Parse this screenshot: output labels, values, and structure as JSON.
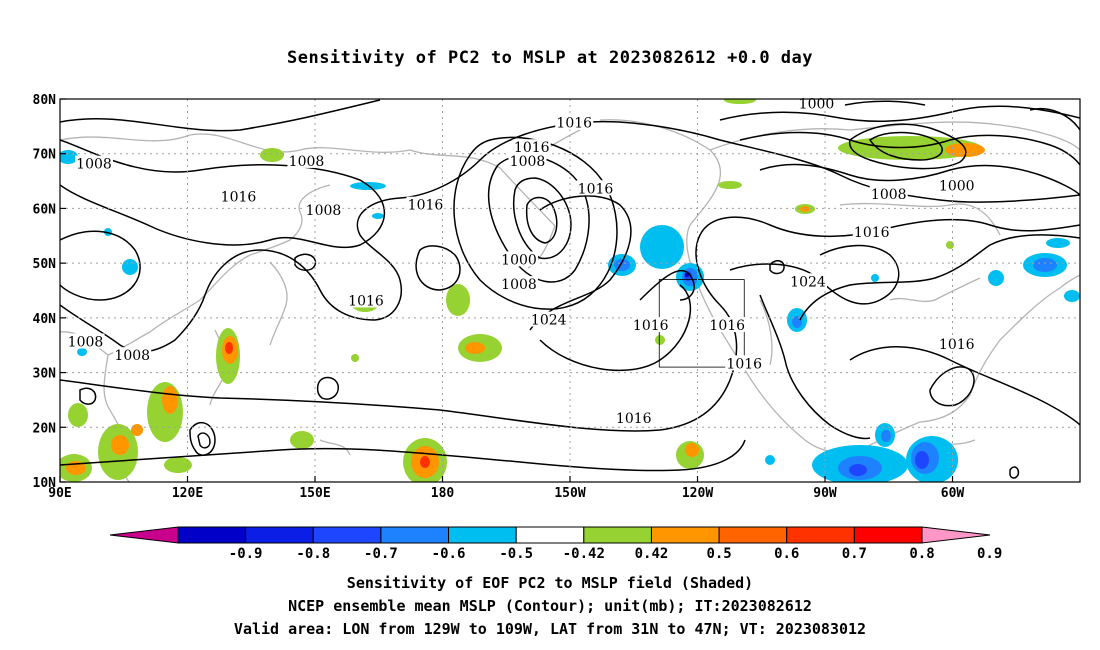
{
  "title": "Sensitivity of PC2 to MSLP at 2023082612 +0.0 day",
  "map": {
    "lon_range": [
      90,
      330
    ],
    "lat_range": [
      10,
      80
    ],
    "x_ticks": [
      "90E",
      "120E",
      "150E",
      "180",
      "150W",
      "120W",
      "90W",
      "60W"
    ],
    "x_tick_lons": [
      90,
      120,
      150,
      180,
      210,
      240,
      270,
      300
    ],
    "y_ticks": [
      "10N",
      "20N",
      "30N",
      "40N",
      "50N",
      "60N",
      "70N",
      "80N"
    ],
    "y_tick_lats": [
      10,
      20,
      30,
      40,
      50,
      60,
      70,
      80
    ],
    "gridlines": true,
    "valid_area": {
      "lon": [
        231,
        251
      ],
      "lat": [
        31,
        47
      ]
    },
    "contour_labels": [
      {
        "text": "1016",
        "lon": 211,
        "lat": 75.5
      },
      {
        "text": "1016",
        "lon": 201,
        "lat": 71
      },
      {
        "text": "1008",
        "lon": 200,
        "lat": 68.5
      },
      {
        "text": "1000",
        "lon": 268,
        "lat": 79
      },
      {
        "text": "1008",
        "lon": 98,
        "lat": 68
      },
      {
        "text": "1008",
        "lon": 148,
        "lat": 68.5
      },
      {
        "text": "1016",
        "lon": 132,
        "lat": 62
      },
      {
        "text": "1008",
        "lon": 152,
        "lat": 59.5
      },
      {
        "text": "1016",
        "lon": 176,
        "lat": 60.5
      },
      {
        "text": "1016",
        "lon": 216,
        "lat": 63.5
      },
      {
        "text": "1008",
        "lon": 285,
        "lat": 62.5
      },
      {
        "text": "1000",
        "lon": 301,
        "lat": 64
      },
      {
        "text": "1016",
        "lon": 281,
        "lat": 55.5
      },
      {
        "text": "1000",
        "lon": 198,
        "lat": 50.5
      },
      {
        "text": "1008",
        "lon": 198,
        "lat": 46
      },
      {
        "text": "1016",
        "lon": 162,
        "lat": 43
      },
      {
        "text": "1024",
        "lon": 266,
        "lat": 46.5
      },
      {
        "text": "1024",
        "lon": 205,
        "lat": 39.5
      },
      {
        "text": "1016",
        "lon": 229,
        "lat": 38.5
      },
      {
        "text": "1016",
        "lon": 247,
        "lat": 38.5
      },
      {
        "text": "1008",
        "lon": 96,
        "lat": 35.5
      },
      {
        "text": "1008",
        "lon": 107,
        "lat": 33
      },
      {
        "text": "1016",
        "lon": 251,
        "lat": 31.5
      },
      {
        "text": "1016",
        "lon": 301,
        "lat": 35
      },
      {
        "text": "1016",
        "lon": 225,
        "lat": 21.5
      }
    ]
  },
  "colorbar": {
    "labels": [
      "-0.9",
      "-0.8",
      "-0.7",
      "-0.6",
      "-0.5",
      "-0.42",
      "0.42",
      "0.5",
      "0.6",
      "0.7",
      "0.8",
      "0.9"
    ],
    "colors": [
      "#c8008c",
      "#0000c8",
      "#0a1ee6",
      "#1e46ff",
      "#1e82ff",
      "#00bef0",
      "#ffffff",
      "#96d232",
      "#ff9600",
      "#ff6400",
      "#ff3200",
      "#ff0000",
      "#ff96c8"
    ]
  },
  "caption": {
    "line1": "Sensitivity of EOF PC2 to MSLP field (Shaded)",
    "line2": "NCEP ensemble mean MSLP (Contour); unit(mb); IT:2023082612",
    "line3": "Valid area: LON from 129W to 109W, LAT from 31N to 47N; VT: 2023083012"
  }
}
